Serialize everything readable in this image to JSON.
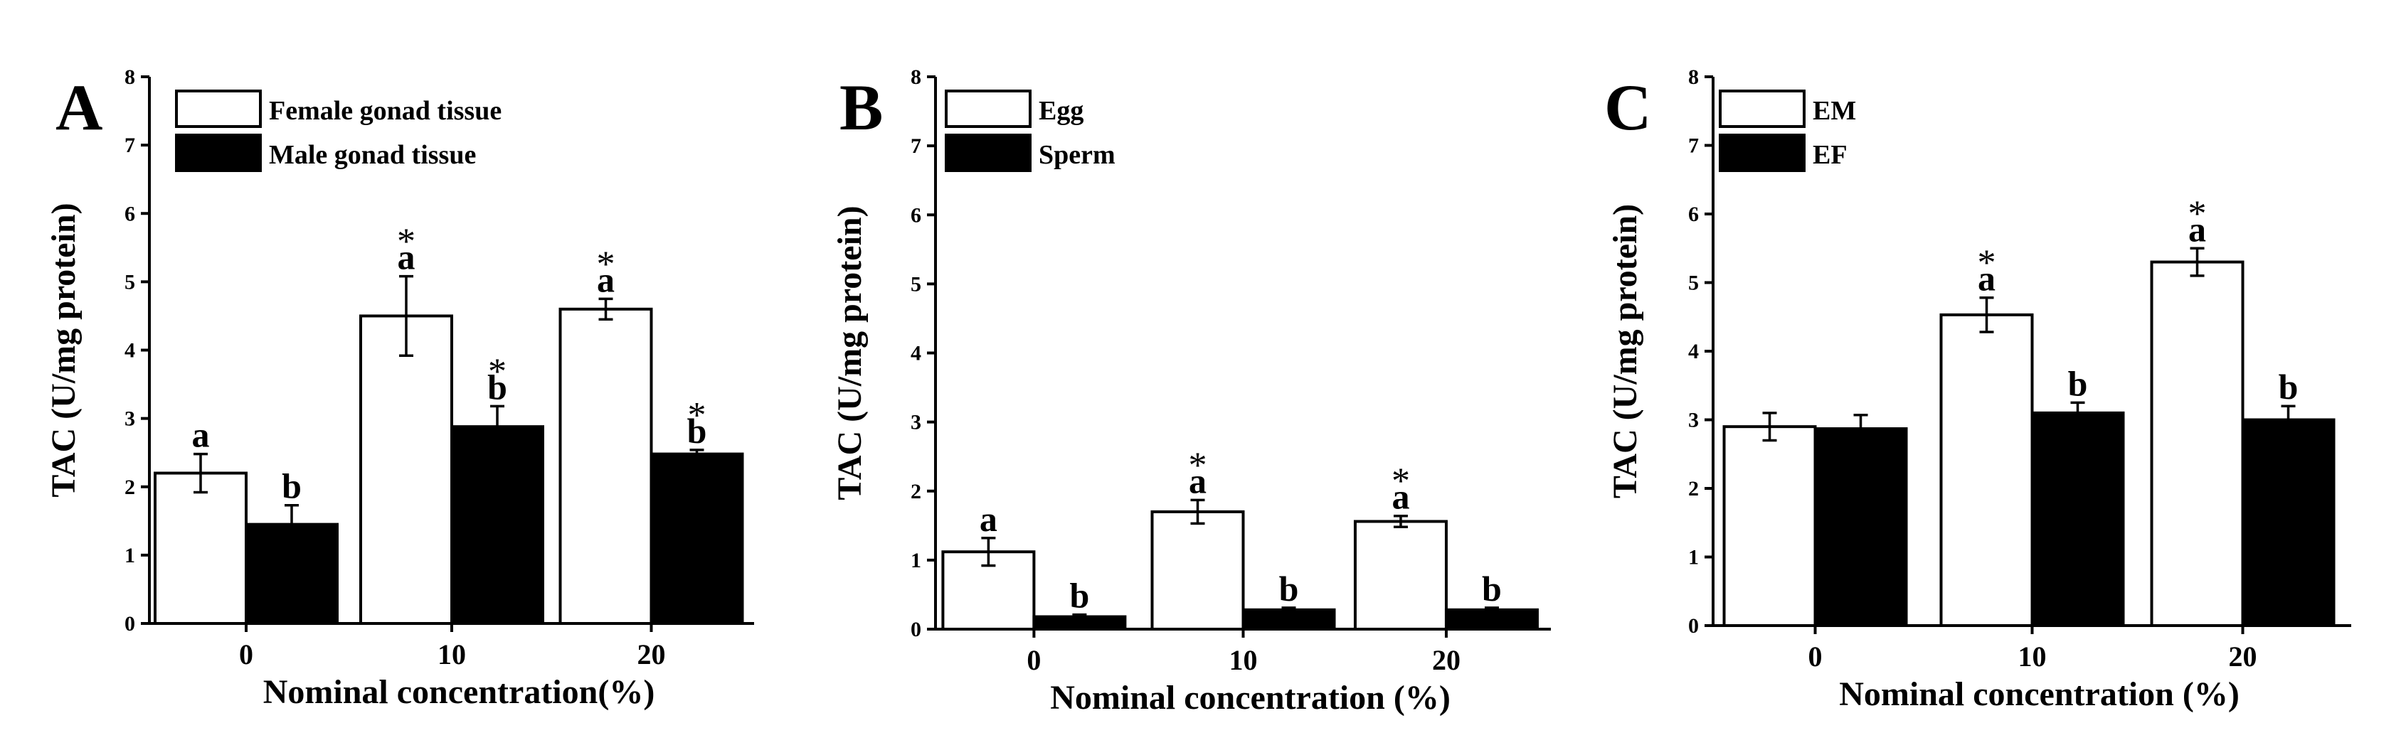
{
  "chart_data": [
    {
      "type": "bar",
      "panel_label": "A",
      "categories": [
        "0",
        "10",
        "20"
      ],
      "series": [
        {
          "name": "Female gonad tissue",
          "color": "#ffffff",
          "values": [
            2.2,
            4.5,
            4.6
          ],
          "errors": [
            0.28,
            0.58,
            0.15
          ],
          "letters": [
            "a",
            "a",
            "a"
          ],
          "stars": [
            "",
            "*",
            "*"
          ]
        },
        {
          "name": "Male gonad tissue",
          "color": "#000000",
          "values": [
            1.45,
            2.88,
            2.48
          ],
          "errors": [
            0.28,
            0.3,
            0.06
          ],
          "letters": [
            "b",
            "b",
            "b"
          ],
          "stars": [
            "",
            "*",
            "*"
          ]
        }
      ],
      "title": "",
      "xlabel": "Nominal concentration(%)",
      "ylabel": "TAC (U/mg protein)",
      "ylim": [
        0,
        8
      ],
      "yticks": [
        "0",
        "1",
        "2",
        "3",
        "4",
        "5",
        "6",
        "7",
        "8"
      ]
    },
    {
      "type": "bar",
      "panel_label": "B",
      "categories": [
        "0",
        "10",
        "20"
      ],
      "series": [
        {
          "name": "Egg",
          "color": "#ffffff",
          "values": [
            1.12,
            1.7,
            1.56
          ],
          "errors": [
            0.2,
            0.17,
            0.08
          ],
          "letters": [
            "a",
            "a",
            "a"
          ],
          "stars": [
            "",
            "*",
            "*"
          ]
        },
        {
          "name": "Sperm",
          "color": "#000000",
          "values": [
            0.18,
            0.28,
            0.28
          ],
          "errors": [
            0.03,
            0.03,
            0.03
          ],
          "letters": [
            "b",
            "b",
            "b"
          ],
          "stars": [
            "",
            "",
            ""
          ]
        }
      ],
      "title": "",
      "xlabel": "Nominal concentration (%)",
      "ylabel": "TAC (U/mg protein)",
      "ylim": [
        0,
        8
      ],
      "yticks": [
        "0",
        "1",
        "2",
        "3",
        "4",
        "5",
        "6",
        "7",
        "8"
      ]
    },
    {
      "type": "bar",
      "panel_label": "C",
      "categories": [
        "0",
        "10",
        "20"
      ],
      "series": [
        {
          "name": "EM",
          "color": "#ffffff",
          "values": [
            2.9,
            4.53,
            5.3
          ],
          "errors": [
            0.2,
            0.25,
            0.2
          ],
          "letters": [
            "",
            "a",
            "a"
          ],
          "stars": [
            "",
            "*",
            "*"
          ]
        },
        {
          "name": "EF",
          "color": "#000000",
          "values": [
            2.87,
            3.1,
            3.0
          ],
          "errors": [
            0.2,
            0.15,
            0.2
          ],
          "letters": [
            "",
            "b",
            "b"
          ],
          "stars": [
            "",
            "",
            ""
          ]
        }
      ],
      "title": "",
      "xlabel": "Nominal concentration (%)",
      "ylabel": "TAC (U/mg protein)",
      "ylim": [
        0,
        8
      ],
      "yticks": [
        "0",
        "1",
        "2",
        "3",
        "4",
        "5",
        "6",
        "7",
        "8"
      ]
    }
  ]
}
